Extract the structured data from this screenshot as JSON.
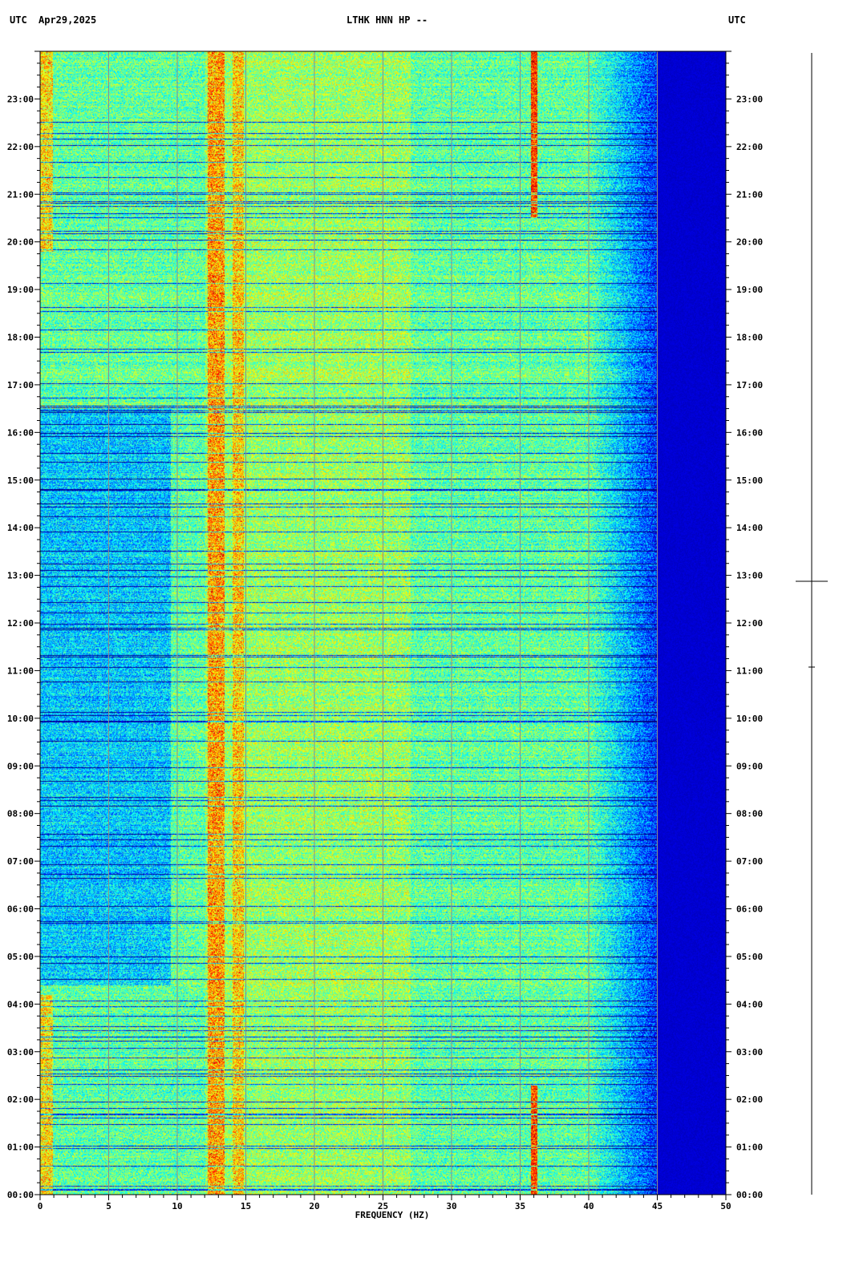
{
  "header": {
    "left_tz": "UTC",
    "date": "Apr29,2025",
    "station": "LTHK HNN HP --",
    "right_tz": "UTC"
  },
  "chart_data": {
    "type": "heatmap",
    "title": "LTHK HNN HP --",
    "date": "Apr29,2025",
    "xlabel": "FREQUENCY (HZ)",
    "ylabel": "UTC",
    "xlim": [
      0,
      50
    ],
    "ylim_hours": [
      0,
      24
    ],
    "x_ticks": [
      "0",
      "5",
      "10",
      "15",
      "20",
      "25",
      "30",
      "35",
      "40",
      "45",
      "50"
    ],
    "y_ticks": [
      "00:00",
      "01:00",
      "02:00",
      "03:00",
      "04:00",
      "05:00",
      "06:00",
      "07:00",
      "08:00",
      "09:00",
      "10:00",
      "11:00",
      "12:00",
      "13:00",
      "14:00",
      "15:00",
      "16:00",
      "17:00",
      "18:00",
      "19:00",
      "20:00",
      "21:00",
      "22:00",
      "23:00"
    ],
    "grid": true,
    "colormap": "jet",
    "colors": {
      "low": "#00008f",
      "mid_low": "#1e6bff",
      "mid": "#3fe0c0",
      "mid_high": "#d8e84a",
      "high": "#c81e14",
      "grid_line": "#8c8c8c"
    },
    "features": {
      "persistent_lines_hz": [
        0.5,
        12.8,
        14.4
      ],
      "intermittent_line_hz": 36,
      "rolloff_hz": 43,
      "cutoff_hz": 45
    }
  }
}
